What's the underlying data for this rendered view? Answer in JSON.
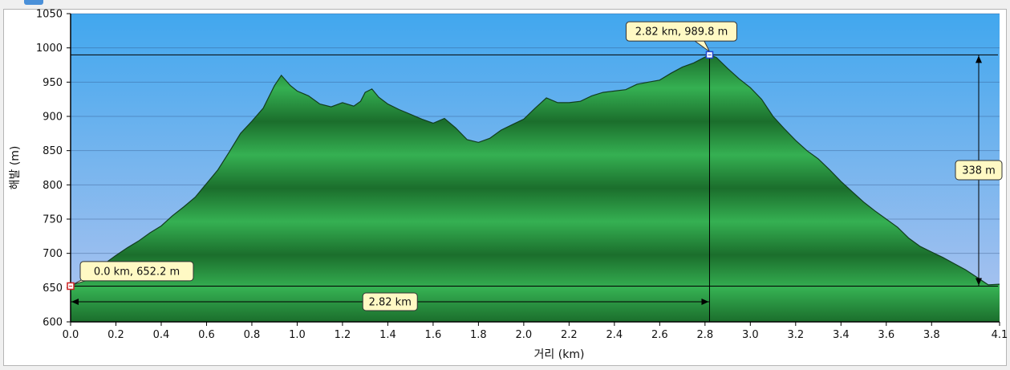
{
  "colors": {
    "sky_top": "#41a7ee",
    "sky_bottom": "#b0c4ef",
    "terrain_dark": "#1b6e2c",
    "terrain_light": "#35b052",
    "callout_fill": "#fff9c4"
  },
  "chart_data": {
    "type": "area",
    "xlabel": "거리  (km)",
    "ylabel": "해발 (m)",
    "xlim": [
      0,
      4.1
    ],
    "ylim": [
      600,
      1050
    ],
    "x_ticks": [
      "0.0",
      "0.2",
      "0.4",
      "0.6",
      "0.8",
      "1.0",
      "1.2",
      "1.4",
      "1.6",
      "1.8",
      "2.0",
      "2.2",
      "2.4",
      "2.6",
      "2.8",
      "3.0",
      "3.2",
      "3.4",
      "3.6",
      "3.8",
      "4.1"
    ],
    "y_ticks": [
      "600",
      "650",
      "700",
      "750",
      "800",
      "850",
      "900",
      "950",
      "1000",
      "1050"
    ],
    "grid": true,
    "points": [
      [
        0.0,
        652
      ],
      [
        0.05,
        660
      ],
      [
        0.1,
        672
      ],
      [
        0.15,
        685
      ],
      [
        0.2,
        697
      ],
      [
        0.25,
        708
      ],
      [
        0.3,
        718
      ],
      [
        0.35,
        730
      ],
      [
        0.4,
        740
      ],
      [
        0.45,
        755
      ],
      [
        0.5,
        768
      ],
      [
        0.55,
        782
      ],
      [
        0.6,
        802
      ],
      [
        0.65,
        822
      ],
      [
        0.7,
        848
      ],
      [
        0.75,
        875
      ],
      [
        0.8,
        893
      ],
      [
        0.85,
        912
      ],
      [
        0.9,
        945
      ],
      [
        0.93,
        960
      ],
      [
        0.97,
        945
      ],
      [
        1.0,
        937
      ],
      [
        1.05,
        930
      ],
      [
        1.1,
        918
      ],
      [
        1.15,
        914
      ],
      [
        1.2,
        920
      ],
      [
        1.25,
        915
      ],
      [
        1.28,
        922
      ],
      [
        1.3,
        935
      ],
      [
        1.33,
        940
      ],
      [
        1.36,
        928
      ],
      [
        1.4,
        918
      ],
      [
        1.45,
        910
      ],
      [
        1.5,
        903
      ],
      [
        1.55,
        896
      ],
      [
        1.6,
        890
      ],
      [
        1.65,
        897
      ],
      [
        1.7,
        883
      ],
      [
        1.75,
        866
      ],
      [
        1.8,
        862
      ],
      [
        1.85,
        868
      ],
      [
        1.9,
        880
      ],
      [
        1.95,
        888
      ],
      [
        2.0,
        896
      ],
      [
        2.05,
        912
      ],
      [
        2.1,
        927
      ],
      [
        2.15,
        920
      ],
      [
        2.2,
        920
      ],
      [
        2.25,
        922
      ],
      [
        2.3,
        930
      ],
      [
        2.35,
        935
      ],
      [
        2.4,
        937
      ],
      [
        2.45,
        939
      ],
      [
        2.5,
        947
      ],
      [
        2.55,
        950
      ],
      [
        2.6,
        953
      ],
      [
        2.65,
        963
      ],
      [
        2.7,
        972
      ],
      [
        2.75,
        978
      ],
      [
        2.82,
        990
      ],
      [
        2.85,
        986
      ],
      [
        2.9,
        970
      ],
      [
        2.95,
        955
      ],
      [
        3.0,
        942
      ],
      [
        3.05,
        925
      ],
      [
        3.1,
        900
      ],
      [
        3.15,
        882
      ],
      [
        3.2,
        865
      ],
      [
        3.25,
        850
      ],
      [
        3.3,
        838
      ],
      [
        3.35,
        822
      ],
      [
        3.4,
        805
      ],
      [
        3.45,
        790
      ],
      [
        3.5,
        775
      ],
      [
        3.55,
        762
      ],
      [
        3.6,
        750
      ],
      [
        3.65,
        738
      ],
      [
        3.7,
        722
      ],
      [
        3.75,
        710
      ],
      [
        3.8,
        702
      ],
      [
        3.85,
        694
      ],
      [
        3.9,
        685
      ],
      [
        3.95,
        676
      ],
      [
        4.0,
        665
      ],
      [
        4.05,
        654
      ],
      [
        4.1,
        655
      ]
    ],
    "markers": [
      {
        "x": 0.0,
        "y": 652.2,
        "label": "0.0 km, 652.2 m"
      },
      {
        "x": 2.82,
        "y": 989.8,
        "label": "2.82 km, 989.8 m"
      }
    ],
    "dimension_labels": {
      "distance": "2.82 km",
      "elevation_gain": "338 m"
    }
  }
}
